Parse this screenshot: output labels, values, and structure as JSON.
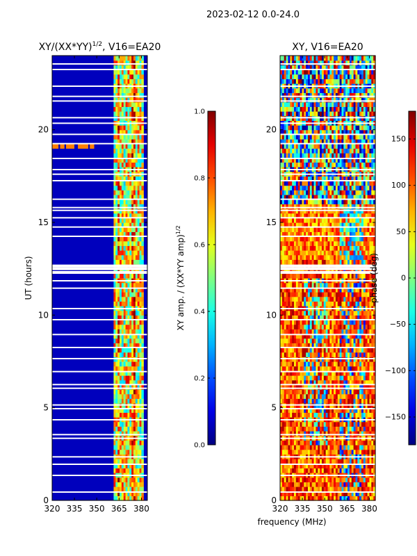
{
  "suptitle": "2023-02-12 0.0-24.0",
  "chart_data": [
    {
      "type": "heatmap",
      "title": "XY/(XX*YY)^1/2, V16=EA20",
      "title_main": "XY/(XX*YY)",
      "title_sup": "1/2",
      "title_tail": ", V16=EA20",
      "xlabel": "",
      "ylabel": "UT (hours)",
      "x_ticks": [
        320,
        335,
        350,
        365,
        380
      ],
      "y_ticks": [
        0,
        5,
        10,
        15,
        20
      ],
      "xlim": [
        320,
        384
      ],
      "ylim": [
        0,
        24
      ],
      "colorbar": {
        "label_main": "XY amp. / (XX*YY amp)",
        "label_sup": "1/2",
        "range": [
          0.0,
          1.0
        ],
        "ticks": [
          "0.0",
          "0.2",
          "0.4",
          "0.6",
          "0.8",
          "1.0"
        ],
        "colormap": "jet"
      },
      "description": "low normalized amplitude (~0.05) below ~361 MHz, high band (0.4-0.9) between ~362 and 381 MHz"
    },
    {
      "type": "heatmap",
      "title": "XY, V16=EA20",
      "xlabel": "frequency (MHz)",
      "ylabel": "",
      "x_ticks": [
        320,
        335,
        350,
        365,
        380
      ],
      "y_ticks": [
        0,
        5,
        10,
        15,
        20
      ],
      "xlim": [
        320,
        384
      ],
      "ylim": [
        0,
        24
      ],
      "colorbar": {
        "label": "phase (deg)",
        "range": [
          -180,
          180
        ],
        "ticks": [
          "150",
          "100",
          "50",
          "0",
          "−50",
          "−100",
          "−150"
        ],
        "colormap": "jet"
      },
      "description": "phase mostly near 120-180 deg below 13 h, noisy/mixed above"
    }
  ],
  "gap_hours": [
    0.45,
    1.35,
    1.95,
    2.35,
    3.35,
    3.55,
    4.35,
    4.95,
    5.15,
    6.05,
    6.25,
    6.95,
    7.65,
    8.25,
    8.95,
    9.75,
    10.35,
    11.45,
    11.85,
    12.3,
    12.5,
    12.65,
    14.25,
    14.75,
    15.25,
    15.65,
    15.8,
    16.25,
    17.25,
    17.6,
    17.85,
    18.45,
    19.25,
    19.75,
    20.35,
    20.65,
    21.55,
    21.8,
    22.35,
    23.25,
    23.55
  ]
}
